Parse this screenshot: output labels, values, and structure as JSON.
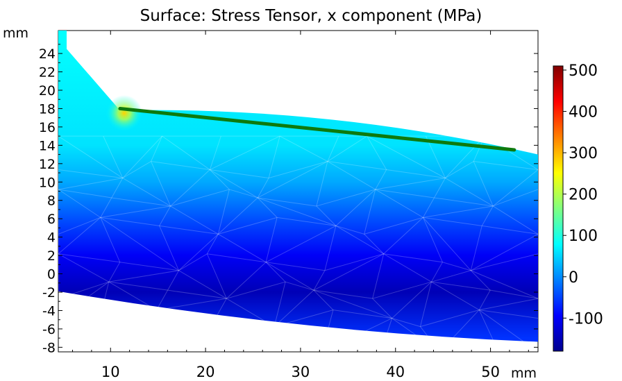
{
  "chart_data": {
    "type": "heatmap",
    "title": "Surface: Stress Tensor, x component (MPa)",
    "x_unit": "mm",
    "y_unit": "mm",
    "xlim": [
      4.5,
      55
    ],
    "ylim": [
      -8.5,
      26.5
    ],
    "x_ticks": [
      "10",
      "20",
      "30",
      "40",
      "50"
    ],
    "y_ticks": [
      "24",
      "22",
      "20",
      "18",
      "16",
      "14",
      "12",
      "10",
      "8",
      "6",
      "4",
      "2",
      "0",
      "-2",
      "-4",
      "-6",
      "-8"
    ],
    "colorbar": {
      "range": [
        -180,
        510
      ],
      "ticks": [
        "500",
        "400",
        "300",
        "200",
        "100",
        "0",
        "-100"
      ],
      "colormap": [
        "#00008f",
        "#0000ff",
        "#0080ff",
        "#00ffff",
        "#80ff80",
        "#ffff00",
        "#ff8000",
        "#ff0000",
        "#800000"
      ]
    },
    "domain_outline": {
      "top_left_corner": [
        4.5,
        26.5
      ],
      "notch_vertex": [
        11,
        17.8
      ],
      "right_top": [
        55,
        13
      ],
      "right_bottom": [
        55,
        -7.4
      ],
      "bottom_left": [
        4.5,
        -1.9
      ]
    },
    "contact_strip": {
      "start": [
        11,
        18
      ],
      "end": [
        52.5,
        13.5
      ],
      "color": "#0e7a0e"
    },
    "field_bands": [
      {
        "y": 26,
        "value": 80
      },
      {
        "y": 14,
        "value": 60
      },
      {
        "y": 10,
        "value": 20
      },
      {
        "y": 6,
        "value": -40
      },
      {
        "y": 2,
        "value": -100
      },
      {
        "y": -2,
        "value": -150
      },
      {
        "y": -7,
        "value": -60
      }
    ],
    "hotspot": {
      "x": 11,
      "y": 17.8,
      "value": 260
    }
  }
}
